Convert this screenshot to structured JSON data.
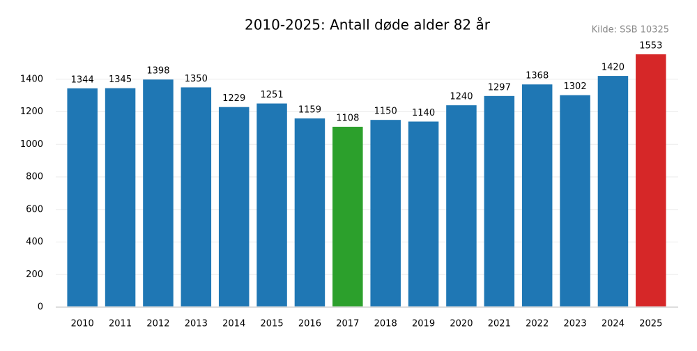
{
  "chart_data": {
    "type": "bar",
    "title": "2010-2025: Antall døde alder 82 år",
    "source": "Kilde: SSB 10325",
    "categories": [
      "2010",
      "2011",
      "2012",
      "2013",
      "2014",
      "2015",
      "2016",
      "2017",
      "2018",
      "2019",
      "2020",
      "2021",
      "2022",
      "2023",
      "2024",
      "2025"
    ],
    "values": [
      1344,
      1345,
      1398,
      1350,
      1229,
      1251,
      1159,
      1108,
      1150,
      1140,
      1240,
      1297,
      1368,
      1302,
      1420,
      1553
    ],
    "colors": [
      "#1f77b4",
      "#1f77b4",
      "#1f77b4",
      "#1f77b4",
      "#1f77b4",
      "#1f77b4",
      "#1f77b4",
      "#2ca02c",
      "#1f77b4",
      "#1f77b4",
      "#1f77b4",
      "#1f77b4",
      "#1f77b4",
      "#1f77b4",
      "#1f77b4",
      "#d62728"
    ],
    "ylim": [
      0,
      1600
    ],
    "yticks": [
      0,
      200,
      400,
      600,
      800,
      1000,
      1200,
      1400
    ],
    "grid": true
  }
}
